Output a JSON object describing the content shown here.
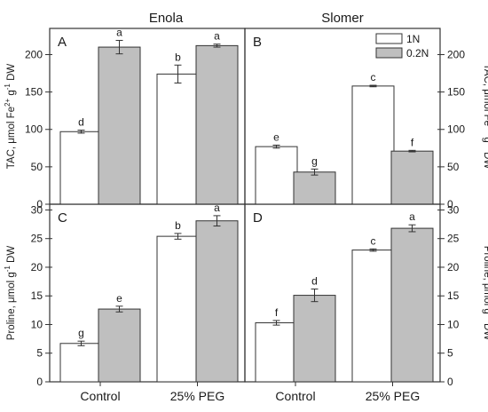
{
  "figure": {
    "columns": [
      "Enola",
      "Slomer"
    ]
  },
  "legend": {
    "entries": [
      {
        "label": "1N",
        "color": "#ffffff"
      },
      {
        "label": "0.2N",
        "color": "#bfbfbf"
      }
    ]
  },
  "colors": {
    "1N": "#ffffff",
    "0.2N": "#bfbfbf",
    "edge": "#333333"
  },
  "chart_data": [
    {
      "panel": "A",
      "type": "bar",
      "cultivar": "Enola",
      "categories": [
        "Control",
        "25% PEG"
      ],
      "ylabel": [
        "TAC, μmol Fe",
        "2+",
        " g",
        "-1",
        " DW"
      ],
      "ylim": [
        0,
        235
      ],
      "yticks": [
        0,
        50,
        100,
        150,
        200
      ],
      "axis_side": "left",
      "series": [
        {
          "name": "1N",
          "values": [
            97,
            174
          ],
          "errors": [
            2,
            12
          ],
          "letters": [
            "d",
            "b"
          ]
        },
        {
          "name": "0.2N",
          "values": [
            210,
            212
          ],
          "errors": [
            9,
            2
          ],
          "letters": [
            "a",
            "a"
          ]
        }
      ]
    },
    {
      "panel": "B",
      "type": "bar",
      "cultivar": "Slomer",
      "categories": [
        "Control",
        "25% PEG"
      ],
      "ylabel": [
        "TAC, μmol Fe",
        "2+",
        " g",
        "-1",
        " DW"
      ],
      "ylim": [
        0,
        235
      ],
      "yticks": [
        0,
        50,
        100,
        150,
        200
      ],
      "axis_side": "right",
      "series": [
        {
          "name": "1N",
          "values": [
            77,
            158
          ],
          "errors": [
            2,
            1
          ],
          "letters": [
            "e",
            "c"
          ]
        },
        {
          "name": "0.2N",
          "values": [
            43,
            71
          ],
          "errors": [
            4,
            1
          ],
          "letters": [
            "g",
            "f"
          ]
        }
      ]
    },
    {
      "panel": "C",
      "type": "bar",
      "cultivar": "Enola",
      "categories": [
        "Control",
        "25% PEG"
      ],
      "ylabel": [
        "Proline, μmol g",
        "-1",
        " DW"
      ],
      "ylim": [
        0,
        31
      ],
      "yticks": [
        0,
        5,
        10,
        15,
        20,
        25,
        30
      ],
      "axis_side": "left",
      "series": [
        {
          "name": "1N",
          "values": [
            6.7,
            25.4
          ],
          "errors": [
            0.4,
            0.5
          ],
          "letters": [
            "g",
            "b"
          ]
        },
        {
          "name": "0.2N",
          "values": [
            12.7,
            28.1
          ],
          "errors": [
            0.5,
            0.9
          ],
          "letters": [
            "e",
            "a"
          ]
        }
      ]
    },
    {
      "panel": "D",
      "type": "bar",
      "cultivar": "Slomer",
      "categories": [
        "Control",
        "25% PEG"
      ],
      "ylabel": [
        "Proline, μmol g",
        "-1",
        " DW"
      ],
      "ylim": [
        0,
        31
      ],
      "yticks": [
        0,
        5,
        10,
        15,
        20,
        25,
        30
      ],
      "axis_side": "right",
      "series": [
        {
          "name": "1N",
          "values": [
            10.3,
            23.0
          ],
          "errors": [
            0.4,
            0.2
          ],
          "letters": [
            "f",
            "c"
          ]
        },
        {
          "name": "0.2N",
          "values": [
            15.1,
            26.8
          ],
          "errors": [
            1.1,
            0.6
          ],
          "letters": [
            "d",
            "a"
          ]
        }
      ]
    }
  ]
}
